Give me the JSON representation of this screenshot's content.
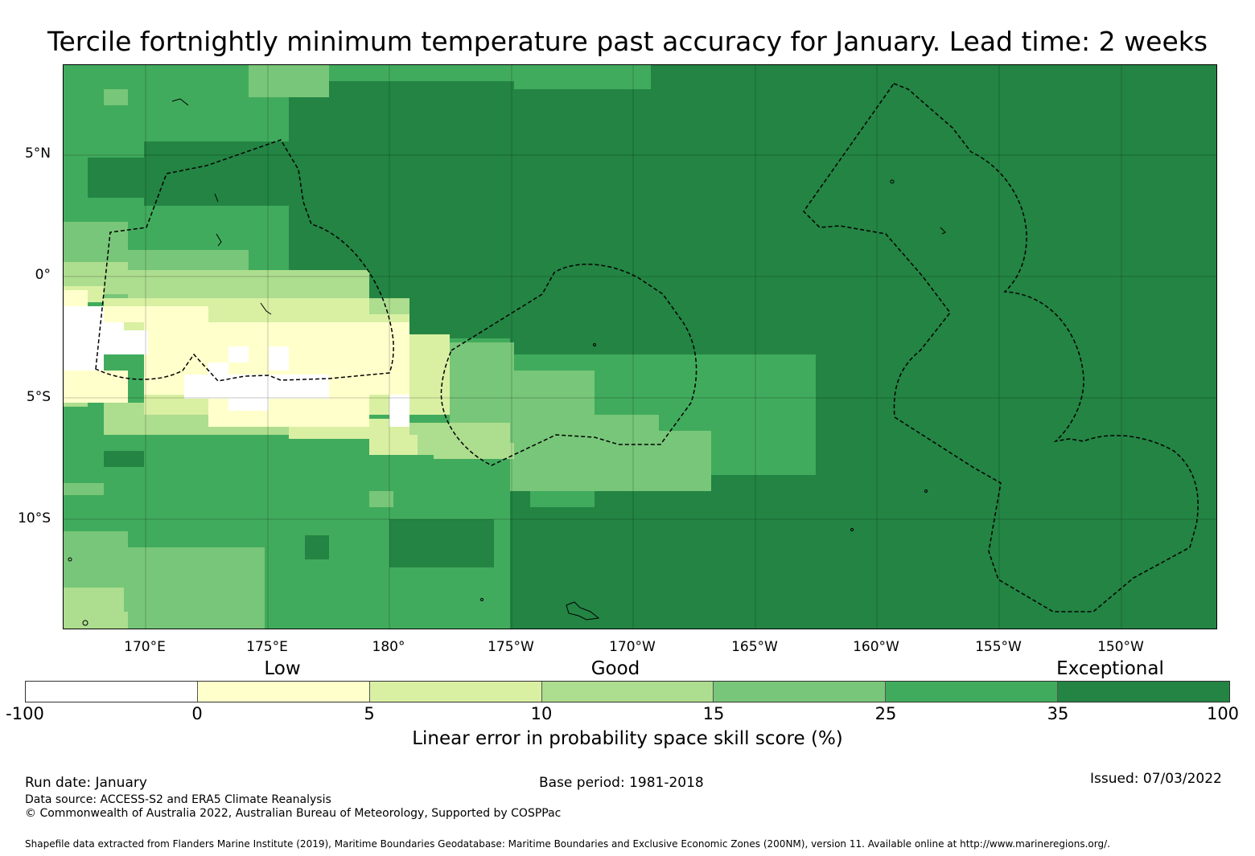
{
  "title": "Tercile fortnightly minimum temperature past accuracy for January. Lead time: 2 weeks",
  "map": {
    "lat_labels": [
      "5°N",
      "0°",
      "5°S",
      "10°S"
    ],
    "lon_labels": [
      "170°E",
      "175°E",
      "180°",
      "175°W",
      "170°W",
      "165°W",
      "160°W",
      "155°W",
      "150°W"
    ],
    "icons": [
      "eez-boundary-icon",
      "coastline-icon"
    ]
  },
  "colorbar": {
    "categories": [
      "Low",
      "Good",
      "Exceptional"
    ],
    "ticks": [
      "-100",
      "0",
      "5",
      "10",
      "15",
      "25",
      "35",
      "100"
    ],
    "colors": [
      "#ffffff",
      "#ffffcc",
      "#d9f0a3",
      "#addd8e",
      "#78c679",
      "#41ab5d",
      "#238443"
    ],
    "title": "Linear error in probability space skill score (%)"
  },
  "footer": {
    "run_date": "Run date: January",
    "base_period": "Base period: 1981-2018",
    "issued": "Issued: 07/03/2022",
    "data_source": "Data source: ACCESS-S2 and ERA5 Climate Reanalysis",
    "copyright": "© Commonwealth of Australia 2022, Australian Bureau of Meteorology, Supported by COSPPac",
    "shapefile": "Shapefile data extracted from Flanders Marine Institute (2019), Maritime Boundaries Geodatabase: Maritime Boundaries and Exclusive Economic Zones (200NM), version 11. Available online at http://www.marineregions.org/."
  }
}
